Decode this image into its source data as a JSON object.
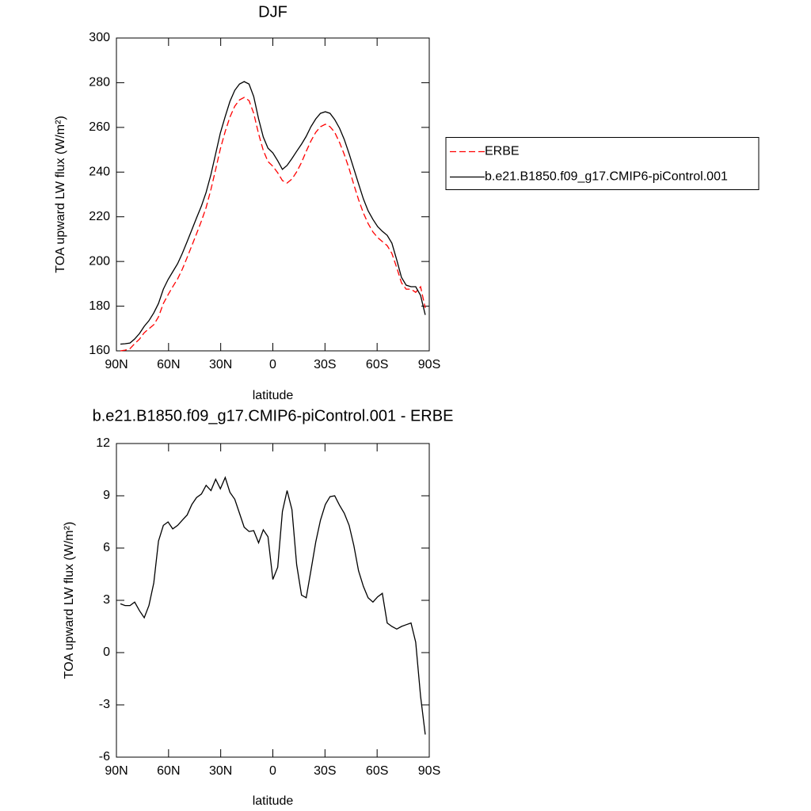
{
  "chart_data": [
    {
      "type": "line",
      "title": "DJF",
      "x_label": "latitude",
      "y_label": "TOA upward LW flux (W/m²)",
      "x": [
        87.7,
        85.0,
        82.2,
        79.5,
        76.7,
        74.0,
        71.3,
        68.5,
        65.8,
        63.0,
        60.3,
        57.6,
        54.8,
        52.1,
        49.3,
        46.6,
        43.9,
        41.1,
        38.4,
        35.6,
        32.9,
        30.2,
        27.4,
        24.7,
        21.9,
        19.2,
        16.5,
        13.7,
        11.0,
        8.2,
        5.5,
        2.8,
        0.0,
        -2.8,
        -5.5,
        -8.2,
        -11.0,
        -13.7,
        -16.5,
        -19.2,
        -21.9,
        -24.7,
        -27.4,
        -30.2,
        -32.9,
        -35.6,
        -38.4,
        -41.1,
        -43.9,
        -46.6,
        -49.3,
        -52.1,
        -54.8,
        -57.6,
        -60.3,
        -63.0,
        -65.8,
        -68.5,
        -71.3,
        -74.0,
        -76.7,
        -79.5,
        -82.2,
        -85.0,
        -87.7
      ],
      "xlim": [
        90,
        -90
      ],
      "xticks": [
        {
          "value": 90,
          "label": "90N"
        },
        {
          "value": 60,
          "label": "60N"
        },
        {
          "value": 30,
          "label": "30N"
        },
        0,
        {
          "value": -30,
          "label": "30S"
        },
        {
          "value": -60,
          "label": "60S"
        },
        {
          "value": -90,
          "label": "90S"
        }
      ],
      "ylim": [
        160,
        300
      ],
      "yticks": [
        160,
        180,
        200,
        220,
        240,
        260,
        280,
        300
      ],
      "legend": "right",
      "series": [
        {
          "name": "ERBE",
          "color": "#ff0000",
          "line_style": "dashed",
          "values": [
            160.0,
            160.3,
            161.0,
            163.2,
            165.3,
            168.1,
            169.9,
            171.7,
            175.2,
            181.2,
            185.1,
            188.7,
            192.2,
            196.5,
            201.8,
            207.1,
            212.4,
            218.1,
            224.1,
            232.3,
            241.2,
            250.4,
            258.2,
            264.6,
            269.5,
            272.3,
            273.4,
            272.0,
            266.3,
            257.1,
            249.7,
            244.7,
            242.6,
            239.7,
            236.2,
            235.1,
            236.9,
            240.1,
            244.3,
            249.3,
            253.9,
            257.8,
            260.3,
            261.4,
            260.3,
            257.8,
            253.2,
            247.9,
            241.5,
            234.4,
            227.7,
            221.7,
            217.0,
            213.2,
            210.7,
            208.9,
            207.1,
            203.6,
            197.2,
            190.5,
            187.6,
            187.6,
            186.2,
            188.7,
            179.2
          ]
        },
        {
          "name": "b.e21.B1850.f09_g17.CMIP6-piControl.001",
          "color": "#000000",
          "line_style": "solid",
          "values": [
            163.0,
            163.2,
            163.5,
            165.3,
            167.8,
            171.0,
            173.5,
            177.0,
            181.2,
            187.6,
            191.9,
            195.4,
            199.0,
            203.6,
            208.9,
            214.2,
            219.5,
            224.8,
            230.9,
            239.0,
            248.2,
            257.5,
            264.9,
            271.6,
            276.6,
            279.4,
            280.5,
            279.4,
            273.8,
            263.8,
            255.7,
            250.7,
            248.6,
            245.1,
            241.2,
            243.0,
            246.1,
            249.3,
            252.5,
            256.0,
            260.3,
            263.8,
            266.3,
            267.0,
            266.3,
            263.5,
            259.6,
            254.6,
            248.2,
            241.5,
            234.8,
            228.0,
            222.7,
            218.8,
            215.6,
            213.5,
            211.7,
            208.2,
            200.7,
            192.9,
            189.4,
            188.7,
            188.7,
            184.8,
            176.1
          ]
        }
      ]
    },
    {
      "type": "line",
      "title": "b.e21.B1850.f09_g17.CMIP6-piControl.001 - ERBE",
      "x_label": "latitude",
      "y_label": "TOA upward LW flux (W/m²)",
      "x": [
        87.7,
        85.0,
        82.2,
        79.5,
        76.7,
        74.0,
        71.3,
        68.5,
        65.8,
        63.0,
        60.3,
        57.6,
        54.8,
        52.1,
        49.3,
        46.6,
        43.9,
        41.1,
        38.4,
        35.6,
        32.9,
        30.2,
        27.4,
        24.7,
        21.9,
        19.2,
        16.5,
        13.7,
        11.0,
        8.2,
        5.5,
        2.8,
        0.0,
        -2.8,
        -5.5,
        -8.2,
        -11.0,
        -13.7,
        -16.5,
        -19.2,
        -21.9,
        -24.7,
        -27.4,
        -30.2,
        -32.9,
        -35.6,
        -38.4,
        -41.1,
        -43.9,
        -46.6,
        -49.3,
        -52.1,
        -54.8,
        -57.6,
        -60.3,
        -63.0,
        -65.8,
        -68.5,
        -71.3,
        -74.0,
        -76.7,
        -79.5,
        -82.2,
        -85.0,
        -87.7
      ],
      "xlim": [
        90,
        -90
      ],
      "xticks": [
        {
          "value": 90,
          "label": "90N"
        },
        {
          "value": 60,
          "label": "60N"
        },
        {
          "value": 30,
          "label": "30N"
        },
        0,
        {
          "value": -30,
          "label": "30S"
        },
        {
          "value": -60,
          "label": "60S"
        },
        {
          "value": -90,
          "label": "90S"
        }
      ],
      "ylim": [
        -6,
        12
      ],
      "yticks": [
        -6,
        -3,
        0,
        3,
        6,
        9,
        12
      ],
      "series": [
        {
          "color": "#000000",
          "line_style": "solid",
          "values": [
            2.8,
            2.7,
            2.7,
            2.9,
            2.4,
            2.0,
            2.7,
            4.0,
            6.4,
            7.3,
            7.5,
            7.1,
            7.3,
            7.6,
            7.9,
            8.5,
            8.9,
            9.1,
            9.6,
            9.3,
            9.95,
            9.4,
            10.05,
            9.2,
            8.8,
            8.0,
            7.2,
            6.95,
            7.0,
            6.3,
            7.05,
            6.65,
            4.2,
            4.9,
            8.1,
            9.3,
            8.2,
            5.05,
            3.3,
            3.15,
            4.7,
            6.35,
            7.6,
            8.5,
            8.95,
            9.0,
            8.45,
            8.0,
            7.3,
            6.15,
            4.7,
            3.8,
            3.15,
            2.9,
            3.2,
            3.4,
            1.7,
            1.5,
            1.35,
            1.5,
            1.6,
            1.7,
            0.6,
            -2.5,
            -4.7
          ]
        }
      ]
    }
  ]
}
